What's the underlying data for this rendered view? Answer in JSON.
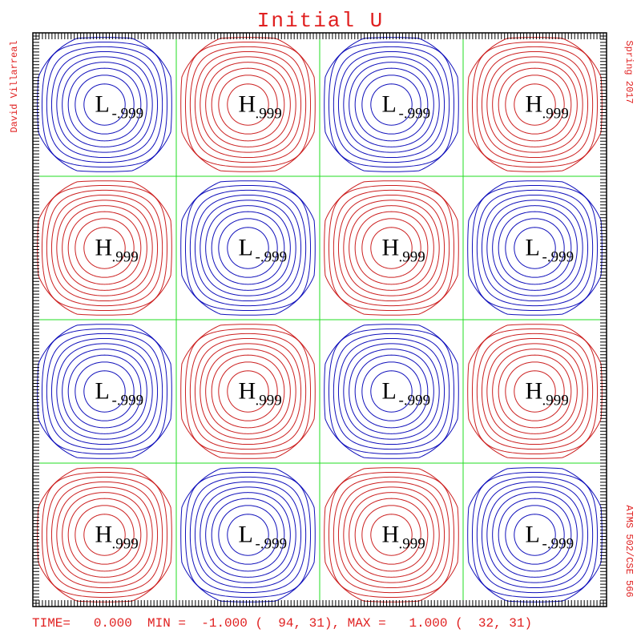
{
  "chart_data": {
    "type": "heatmap",
    "title": "Initial U",
    "left_label": "David Villarreal",
    "right_top_label": "Spring 2017",
    "right_bottom_label": "ATMS 502/CSE 566",
    "footer": "TIME=   0.000  MIN =  -1.000 (  94, 31), MAX =   1.000 (  32, 31)",
    "time": 0.0,
    "min": {
      "value": -1.0,
      "i": 94,
      "j": 31
    },
    "max": {
      "value": 1.0,
      "i": 32,
      "j": 31
    },
    "grid": true,
    "grid_cells": [
      4,
      4
    ],
    "contour_levels": [
      -0.9,
      -0.8,
      -0.7,
      -0.6,
      -0.5,
      -0.4,
      -0.3,
      -0.2,
      -0.1,
      0.1,
      0.2,
      0.3,
      0.4,
      0.5,
      0.6,
      0.7,
      0.8,
      0.9
    ],
    "cells": [
      [
        "L",
        "H",
        "L",
        "H"
      ],
      [
        "H",
        "L",
        "H",
        "L"
      ],
      [
        "L",
        "H",
        "L",
        "H"
      ],
      [
        "H",
        "L",
        "H",
        "L"
      ]
    ],
    "extrema_labels": {
      "H": ".999",
      "L": "-.999"
    },
    "colors": {
      "positive": "#cc2020",
      "negative": "#1010bb",
      "grid": "#22dd22",
      "text": "#e02020",
      "frame": "#000000"
    }
  }
}
